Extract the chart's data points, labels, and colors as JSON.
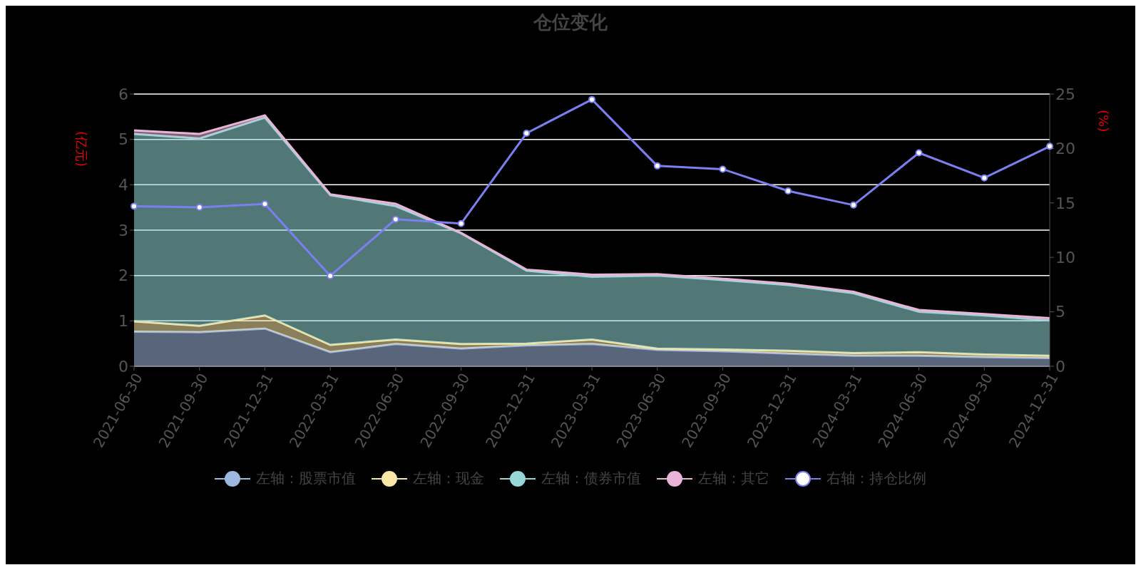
{
  "chart_data": {
    "type": "area",
    "title": "仓位变化",
    "ylabel": "(亿元)",
    "y2label": "(%)",
    "stacked": true,
    "categories": [
      "2021-06-30",
      "2021-09-30",
      "2021-12-31",
      "2022-03-31",
      "2022-06-30",
      "2022-09-30",
      "2022-12-31",
      "2023-03-31",
      "2023-06-30",
      "2023-09-30",
      "2023-12-31",
      "2024-03-31",
      "2024-06-30",
      "2024-09-30",
      "2024-12-31"
    ],
    "series": [
      {
        "name": "左轴：股票市值",
        "color": "#a0b8e0",
        "values": [
          0.76,
          0.75,
          0.83,
          0.31,
          0.49,
          0.39,
          0.46,
          0.49,
          0.36,
          0.33,
          0.28,
          0.23,
          0.23,
          0.2,
          0.18
        ]
      },
      {
        "name": "左轴：现金",
        "color": "#fbe8a6",
        "values": [
          0.23,
          0.14,
          0.29,
          0.16,
          0.1,
          0.1,
          0.04,
          0.1,
          0.03,
          0.04,
          0.06,
          0.06,
          0.08,
          0.06,
          0.05
        ]
      },
      {
        "name": "左轴：债券市值",
        "color": "#96d8d8",
        "values": [
          4.13,
          4.13,
          4.36,
          3.3,
          2.94,
          2.44,
          1.61,
          1.38,
          1.61,
          1.53,
          1.45,
          1.32,
          0.89,
          0.86,
          0.78
        ]
      },
      {
        "name": "左轴：其它",
        "color": "#e8b4d8",
        "values": [
          0.08,
          0.1,
          0.05,
          0.02,
          0.05,
          0.01,
          0.02,
          0.05,
          0.03,
          0.03,
          0.03,
          0.03,
          0.04,
          0.03,
          0.05
        ]
      },
      {
        "name": "右轴：持仓比例",
        "type": "line",
        "axis": "y2",
        "marker": "circle",
        "color": "#7b7ff0",
        "values": [
          14.7,
          14.6,
          14.9,
          8.3,
          13.5,
          13.1,
          21.4,
          24.5,
          18.4,
          18.1,
          16.1,
          14.8,
          19.6,
          17.3,
          20.2
        ]
      }
    ],
    "ylim": [
      0,
      6
    ],
    "yticks": [
      0,
      1,
      2,
      3,
      4,
      5,
      6
    ],
    "y2lim": [
      0,
      25
    ],
    "y2ticks": [
      0,
      5,
      10,
      15,
      20,
      25
    ],
    "grid": "y",
    "legend": "bottom"
  }
}
